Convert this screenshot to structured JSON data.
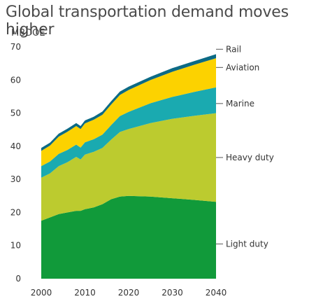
{
  "title": "Global transportation demand moves higher",
  "unit": "MBDOE",
  "colors": {
    "Light duty": "#119a3a",
    "Heavy duty": "#bccb2f",
    "Marine": "#1aaab0",
    "Aviation": "#fcd200",
    "Rail": "#0c6a85"
  },
  "chart_data": {
    "type": "area",
    "stacked": true,
    "title": "Global transportation demand moves higher",
    "ylabel": "MBDOE",
    "xlabel": "",
    "xlim": [
      2000,
      2040
    ],
    "ylim": [
      0,
      70
    ],
    "xticks": [
      2000,
      2010,
      2020,
      2030,
      2040
    ],
    "yticks": [
      0,
      10,
      20,
      30,
      40,
      50,
      60,
      70
    ],
    "legend": "right-side inline labels",
    "x": [
      2000,
      2002,
      2004,
      2006,
      2008,
      2009,
      2010,
      2012,
      2014,
      2016,
      2018,
      2020,
      2025,
      2030,
      2035,
      2040
    ],
    "series": [
      {
        "name": "Light duty",
        "values": [
          17.5,
          18.5,
          19.5,
          20.0,
          20.5,
          20.5,
          21.0,
          21.5,
          22.5,
          24.0,
          24.8,
          25.0,
          24.8,
          24.3,
          23.8,
          23.2
        ]
      },
      {
        "name": "Heavy duty",
        "values": [
          13.0,
          13.3,
          14.5,
          15.2,
          16.3,
          15.5,
          16.5,
          16.8,
          17.0,
          18.0,
          19.5,
          20.2,
          22.2,
          24.0,
          25.4,
          26.8
        ]
      },
      {
        "name": "Marine",
        "values": [
          3.5,
          3.6,
          3.7,
          3.7,
          3.7,
          3.6,
          3.7,
          3.8,
          4.0,
          4.4,
          4.8,
          5.2,
          6.0,
          6.6,
          7.2,
          7.8
        ]
      },
      {
        "name": "Aviation",
        "values": [
          4.6,
          4.8,
          5.2,
          5.5,
          5.6,
          5.6,
          5.7,
          5.9,
          6.0,
          6.2,
          6.4,
          6.6,
          7.0,
          7.6,
          8.2,
          8.8
        ]
      },
      {
        "name": "Rail",
        "values": [
          0.9,
          0.9,
          0.9,
          0.9,
          0.9,
          0.9,
          0.9,
          0.9,
          1.0,
          1.0,
          1.0,
          1.0,
          1.0,
          1.1,
          1.1,
          1.2
        ]
      }
    ],
    "annotations": [
      "Rail",
      "Aviation",
      "Marine",
      "Heavy duty",
      "Light duty"
    ]
  }
}
